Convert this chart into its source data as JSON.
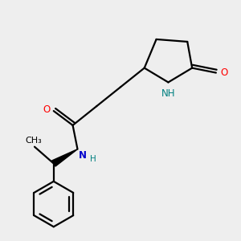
{
  "background_color": "#eeeeee",
  "fig_size": [
    3.0,
    3.0
  ],
  "dpi": 100,
  "atom_colors": {
    "O": "#ff0000",
    "N": "#0000cc",
    "NH_ring": "#008080",
    "C": "#000000"
  },
  "bond_color": "#000000",
  "bond_width": 1.6,
  "font_size_atom": 8.5,
  "font_size_h": 7.5
}
